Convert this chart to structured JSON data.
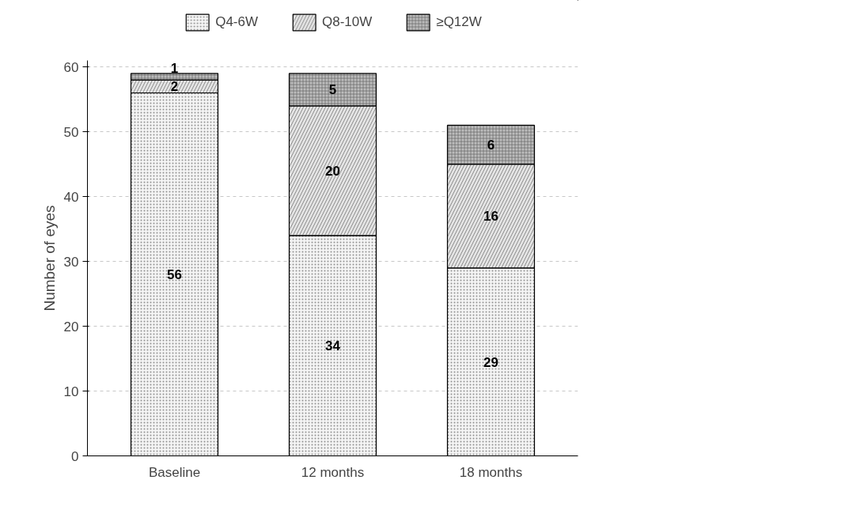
{
  "chart_data": {
    "type": "bar",
    "stacked": true,
    "categories": [
      "Baseline",
      "12 months",
      "18 months"
    ],
    "series": [
      {
        "name": "Q4-6W",
        "color": "#f4f4f4",
        "values": [
          56,
          34,
          29
        ]
      },
      {
        "name": "Q8-10W",
        "color": "#e4e4e4",
        "values": [
          2,
          20,
          16
        ]
      },
      {
        "name": "≥Q12W",
        "color": "#bdbdbd",
        "values": [
          1,
          5,
          6
        ]
      }
    ],
    "ylabel": "Number of eyes",
    "ylim": [
      0,
      61
    ],
    "yticks": [
      0,
      10,
      20,
      30,
      40,
      50,
      60
    ],
    "grid": "y",
    "legend": "top",
    "data_labels": true
  }
}
